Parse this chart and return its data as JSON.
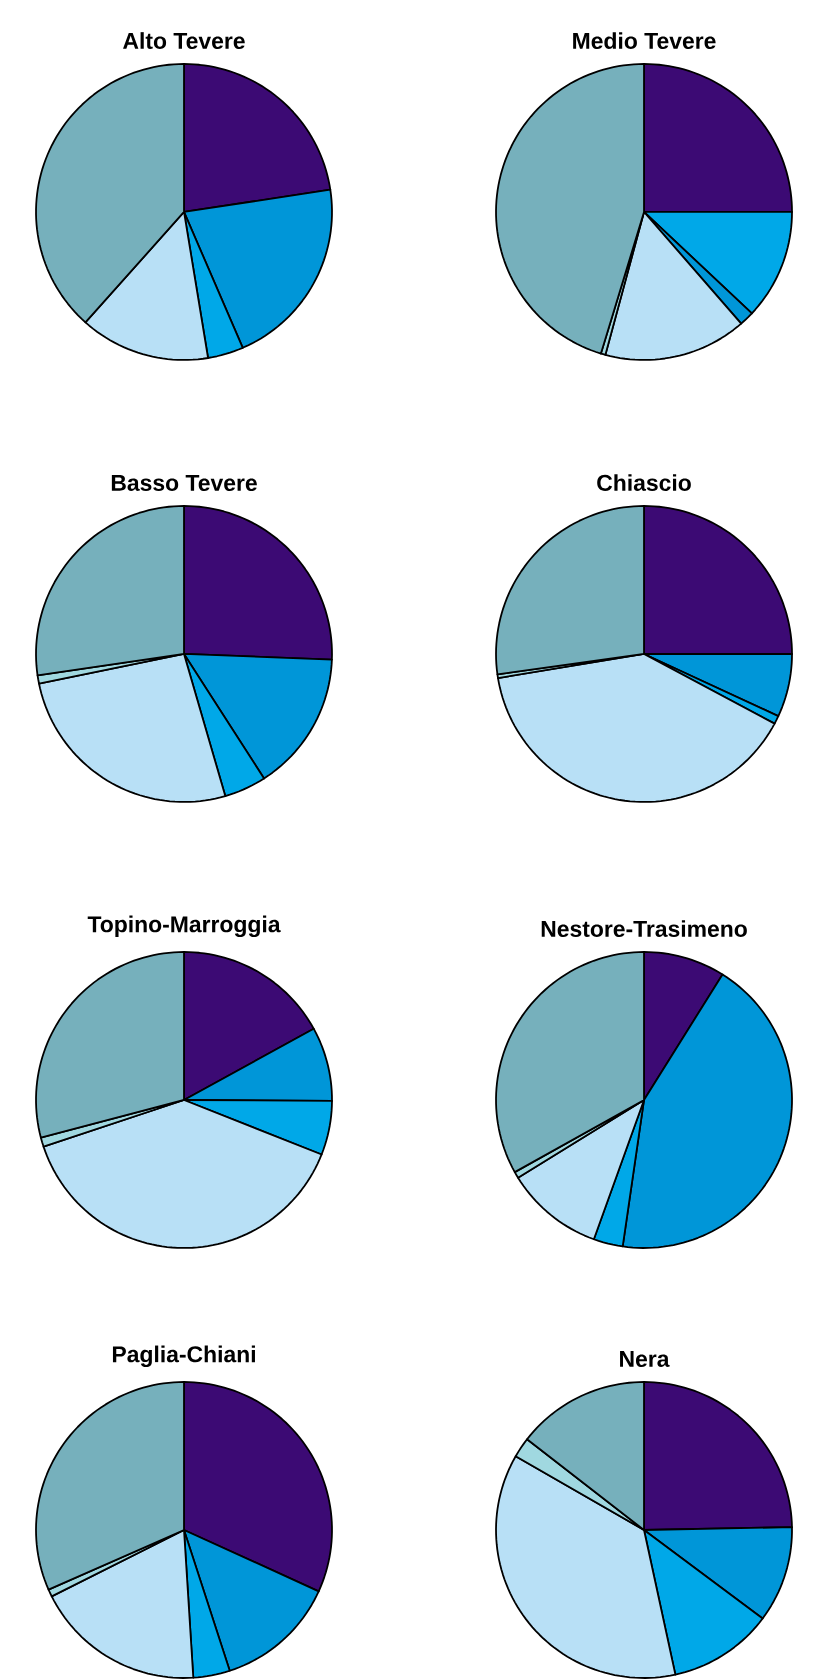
{
  "chart_data": [
    {
      "type": "pie",
      "title": "Alto Tevere",
      "categories": [
        null,
        null,
        null,
        null,
        null
      ],
      "values": [
        22.6,
        20.9,
        3.9,
        14.2,
        38.4
      ],
      "colors": [
        "#3c0a74",
        "#0096d8",
        "#00a8e8",
        "#b8e0f6",
        "#76b0bc"
      ]
    },
    {
      "type": "pie",
      "title": "Medio Tevere",
      "categories": [
        null,
        null,
        null,
        null,
        null,
        null
      ],
      "values": [
        25,
        12.0,
        1.6,
        15.6,
        0.5,
        45.3
      ],
      "colors": [
        "#3c0a74",
        "#00a8e8",
        "#0096d8",
        "#b8e0f6",
        "#a0d8e0",
        "#76b0bc"
      ]
    },
    {
      "type": "pie",
      "title": "Basso Tevere",
      "categories": [
        null,
        null,
        null,
        null,
        null,
        null
      ],
      "values": [
        25.6,
        15.3,
        4.6,
        26.3,
        0.9,
        27.3
      ],
      "colors": [
        "#3c0a74",
        "#0096d8",
        "#00a8e8",
        "#b8e0f6",
        "#a0d8e0",
        "#76b0bc"
      ]
    },
    {
      "type": "pie",
      "title": "Chiascio",
      "categories": [
        null,
        null,
        null,
        null,
        null,
        null
      ],
      "values": [
        25,
        6.9,
        0.9,
        39.6,
        0.4,
        27.2
      ],
      "colors": [
        "#3c0a74",
        "#0096d8",
        "#00a8e8",
        "#b8e0f6",
        "#a0d8e0",
        "#76b0bc"
      ]
    },
    {
      "type": "pie",
      "title": "Topino-Marroggia",
      "categories": [
        null,
        null,
        null,
        null,
        null,
        null
      ],
      "values": [
        17.0,
        8.1,
        5.9,
        38.9,
        1.0,
        29.1
      ],
      "colors": [
        "#3c0a74",
        "#0096d8",
        "#00a8e8",
        "#b8e0f6",
        "#a0d8e0",
        "#76b0bc"
      ]
    },
    {
      "type": "pie",
      "title": "Nestore-Trasimeno",
      "categories": [
        null,
        null,
        null,
        null,
        null,
        null
      ],
      "values": [
        8.9,
        43.4,
        3.2,
        10.7,
        0.7,
        33.1
      ],
      "colors": [
        "#3c0a74",
        "#0096d8",
        "#00a8e8",
        "#b8e0f6",
        "#a0d8e0",
        "#76b0bc"
      ]
    },
    {
      "type": "pie",
      "title": "Paglia-Chiani",
      "categories": [
        null,
        null,
        null,
        null,
        null,
        null
      ],
      "values": [
        31.8,
        13.2,
        4.0,
        18.6,
        0.8,
        31.6
      ],
      "colors": [
        "#3c0a74",
        "#0096d8",
        "#00a8e8",
        "#b8e0f6",
        "#a0d8e0",
        "#76b0bc"
      ]
    },
    {
      "type": "pie",
      "title": "Nera",
      "categories": [
        null,
        null,
        null,
        null,
        null,
        null
      ],
      "values": [
        24.7,
        10.5,
        11.4,
        36.7,
        2.2,
        14.5
      ],
      "colors": [
        "#3c0a74",
        "#0096d8",
        "#00a8e8",
        "#b8e0f6",
        "#a0d8e0",
        "#76b0bc"
      ]
    }
  ]
}
